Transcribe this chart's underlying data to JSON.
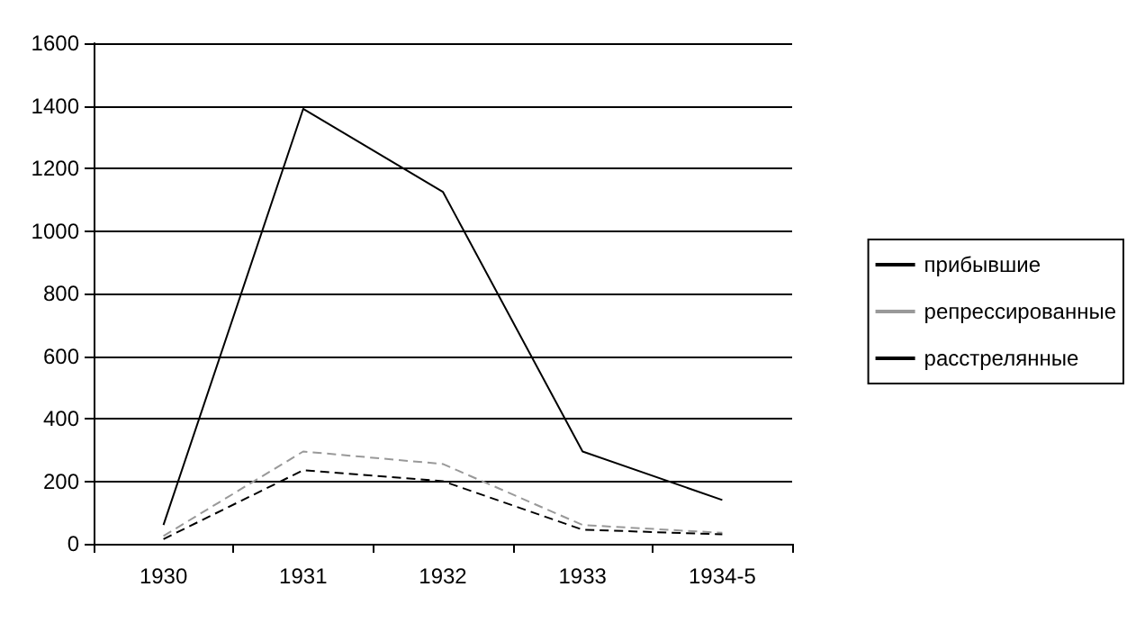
{
  "chart_data": {
    "type": "line",
    "categories": [
      "1930",
      "1931",
      "1932",
      "1933",
      "1934-5"
    ],
    "series": [
      {
        "name": "прибывшие",
        "color": "#000000",
        "line_style": "solid",
        "values": [
          60,
          1390,
          1125,
          295,
          140
        ]
      },
      {
        "name": "репрессированные",
        "color": "#999999",
        "line_style": "dashed",
        "values": [
          25,
          295,
          255,
          60,
          35
        ]
      },
      {
        "name": "расстрелянные",
        "color": "#000000",
        "line_style": "dashed",
        "values": [
          15,
          235,
          200,
          45,
          30
        ]
      }
    ],
    "ylim": [
      0,
      1600
    ],
    "yticks": [
      0,
      200,
      400,
      600,
      800,
      1000,
      1200,
      1400,
      1600
    ],
    "grid": "y",
    "legend": "right",
    "marker": "none"
  }
}
